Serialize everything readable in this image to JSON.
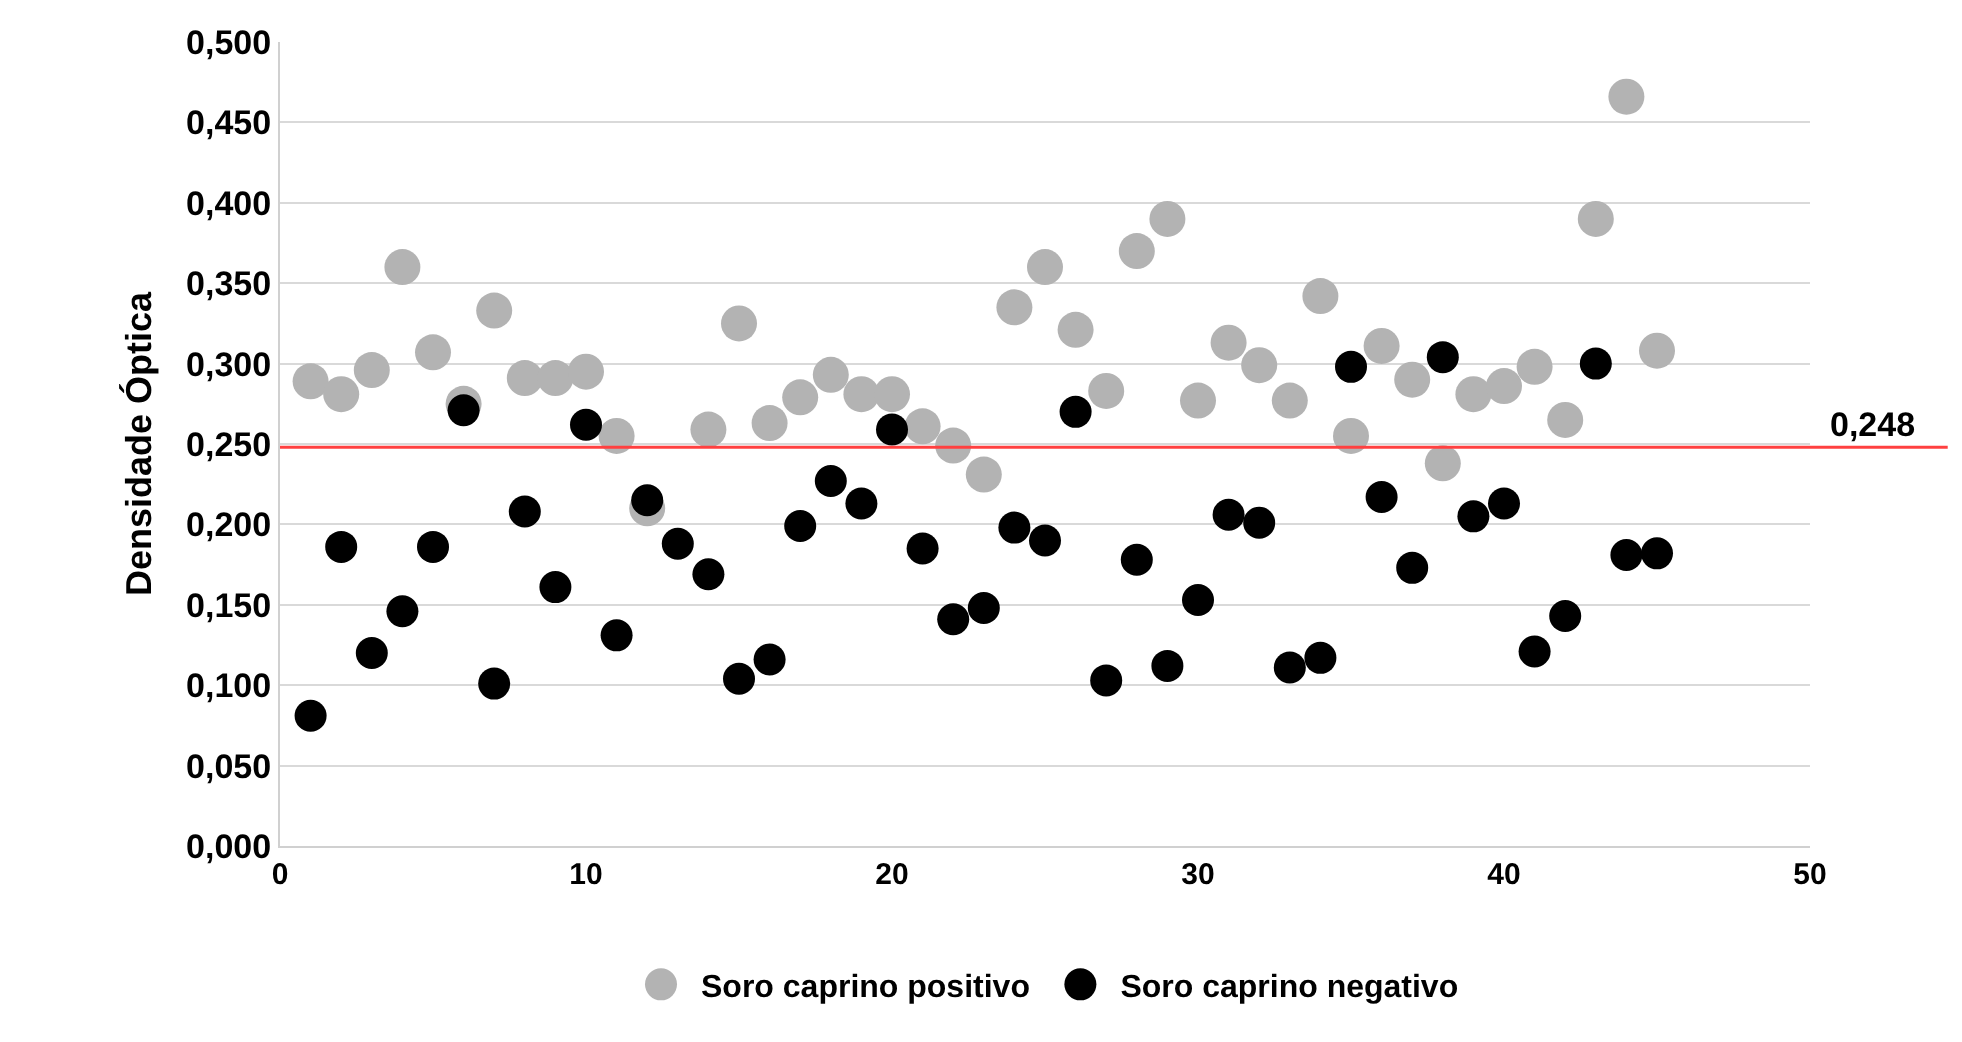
{
  "chart_data": {
    "type": "scatter",
    "ylabel": "Densidade Óptica",
    "marker": "circle",
    "grid": "y",
    "legend": "bottom",
    "x": [
      1,
      2,
      3,
      4,
      5,
      6,
      7,
      8,
      9,
      10,
      11,
      12,
      13,
      14,
      15,
      16,
      17,
      18,
      19,
      20,
      21,
      22,
      23,
      24,
      25,
      26,
      27,
      28,
      29,
      30,
      31,
      32,
      33,
      34,
      35,
      36,
      37,
      38,
      39,
      40,
      41,
      42,
      43,
      44,
      45
    ],
    "series": [
      {
        "name": "Soro caprino positivo",
        "color": "#b3b3b3",
        "values": [
          0.289,
          0.281,
          0.296,
          0.36,
          0.307,
          0.275,
          0.333,
          0.291,
          0.291,
          0.295,
          0.255,
          0.21,
          null,
          0.259,
          0.325,
          0.263,
          0.279,
          0.293,
          0.281,
          0.281,
          0.261,
          0.249,
          0.231,
          0.335,
          0.36,
          0.321,
          0.283,
          0.37,
          0.39,
          0.277,
          0.313,
          0.299,
          0.277,
          0.342,
          0.255,
          0.311,
          0.29,
          0.238,
          0.281,
          0.286,
          0.298,
          0.265,
          0.39,
          0.466,
          0.308
        ]
      },
      {
        "name": "Soro caprino negativo",
        "color": "#000000",
        "values": [
          0.081,
          0.186,
          0.12,
          0.146,
          0.186,
          0.271,
          0.101,
          0.208,
          0.161,
          0.262,
          0.131,
          0.215,
          0.188,
          0.169,
          0.104,
          0.116,
          0.199,
          0.227,
          0.213,
          0.259,
          0.185,
          0.141,
          0.148,
          0.198,
          0.19,
          0.27,
          0.103,
          0.178,
          0.112,
          0.153,
          0.206,
          0.201,
          0.111,
          0.117,
          0.298,
          0.217,
          0.173,
          0.304,
          0.205,
          0.213,
          0.121,
          0.143,
          0.3,
          0.181,
          0.182
        ]
      }
    ],
    "xlim": [
      0,
      50
    ],
    "xticks": [
      0,
      10,
      20,
      30,
      40,
      50
    ],
    "ylim": [
      0,
      0.5
    ],
    "yticks": [
      {
        "value": 0,
        "label": "0,000"
      },
      {
        "value": 0.05,
        "label": "0,050"
      },
      {
        "value": 0.1,
        "label": "0,100"
      },
      {
        "value": 0.15,
        "label": "0,150"
      },
      {
        "value": 0.2,
        "label": "0,200"
      },
      {
        "value": 0.25,
        "label": "0,250"
      },
      {
        "value": 0.3,
        "label": "0,300"
      },
      {
        "value": 0.35,
        "label": "0,350"
      },
      {
        "value": 0.4,
        "label": "0,400"
      },
      {
        "value": 0.45,
        "label": "0,450"
      },
      {
        "value": 0.5,
        "label": "0,500"
      }
    ],
    "ref_lines": [
      {
        "axis": "y",
        "value": 0.248,
        "label": "0,248",
        "color": "#ff4040"
      }
    ]
  }
}
